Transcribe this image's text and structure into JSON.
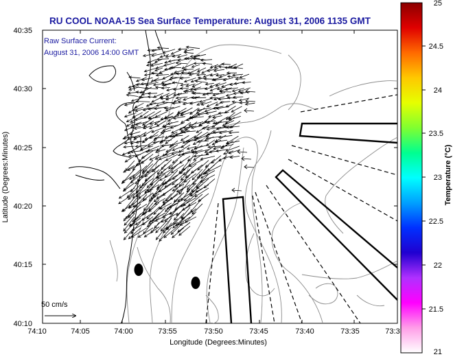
{
  "title": "RU COOL  NOAA-15  Sea Surface Temperature:  August 31, 2006 1135 GMT",
  "annotation": {
    "line1": "Raw Surface Current:",
    "line2": "August 31, 2006 14:00 GMT"
  },
  "scale_label": "50 cm/s",
  "axes": {
    "xlabel": "Longitude (Degrees:Minutes)",
    "ylabel": "Latitude (Degrees:Minutes)",
    "x_ticks": [
      "74:10",
      "74:05",
      "74:00",
      "73:55",
      "73:50",
      "73:45",
      "73:40",
      "73:35",
      "73:3"
    ],
    "y_ticks": [
      "40:35",
      "40:30",
      "40:25",
      "40:20",
      "40:15",
      "40:10"
    ]
  },
  "colorbar": {
    "label": "Temperature (°C)",
    "ticks": [
      "25",
      "24.5",
      "24",
      "23.5",
      "23",
      "22.5",
      "22",
      "21.5",
      "21"
    ],
    "stops": [
      "#8b0000",
      "#e00000",
      "#ff6a00",
      "#ffc800",
      "#e6ff00",
      "#80ff30",
      "#00ff90",
      "#00ffff",
      "#00a0ff",
      "#0030ff",
      "#2000d0",
      "#b030ff",
      "#ff00ff",
      "#ff9ee8",
      "#ffffff"
    ]
  },
  "colors": {
    "title": "#1a1aa0",
    "annotation": "#1a1aa0",
    "contour": "#8a8a8a",
    "coast": "#000000"
  }
}
